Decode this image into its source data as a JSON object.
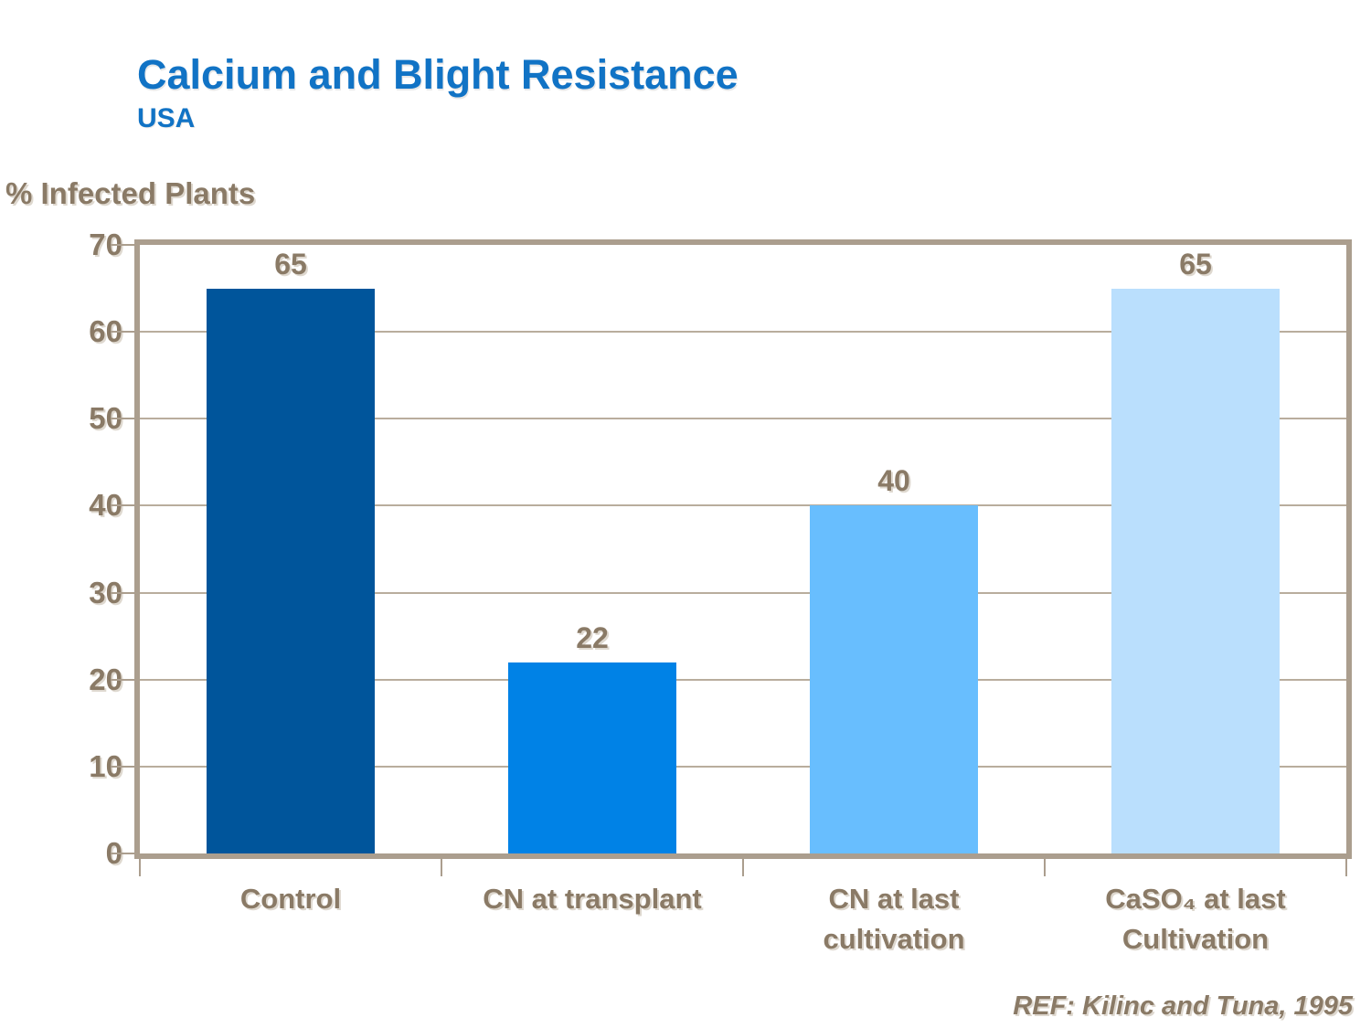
{
  "header": {
    "title": "Calcium and Blight Resistance",
    "subtitle": "USA",
    "title_color": "#1173c5"
  },
  "footer": {
    "reference": "REF: Kilinc and Tuna, 1995"
  },
  "chart_data": {
    "type": "bar",
    "title": "Calcium and Blight Resistance",
    "subtitle": "USA",
    "categories": [
      "Control",
      "CN at transplant",
      "CN at last\ncultivation",
      "CaSO₄ at last\nCultivation"
    ],
    "values": [
      65,
      22,
      40,
      65
    ],
    "bar_colors": [
      "#00559b",
      "#0082e6",
      "#68befe",
      "#badffd"
    ],
    "show_value_labels": true,
    "ylabel": "% Infected Plants",
    "xlabel": "",
    "ylim": [
      0,
      70
    ],
    "yticks": [
      0,
      10,
      20,
      30,
      40,
      50,
      60,
      70
    ],
    "grid": true,
    "legend": "none",
    "text_color": "#8a7a66",
    "axis_color": "#ab9e8e"
  }
}
